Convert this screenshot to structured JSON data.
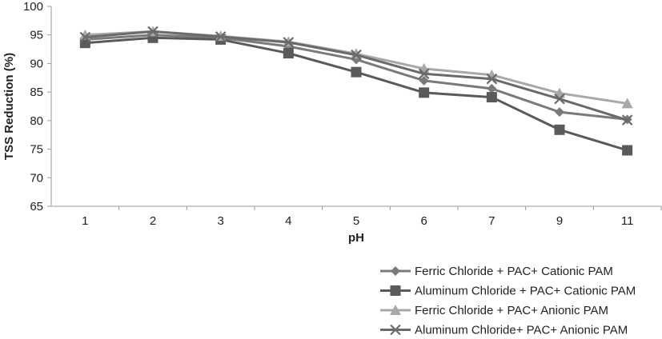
{
  "chart_data": {
    "type": "line",
    "title": "",
    "xlabel": "pH",
    "ylabel": "TSS Reduction (%)",
    "categories": [
      "1",
      "2",
      "3",
      "4",
      "5",
      "6",
      "7",
      "9",
      "11"
    ],
    "ylim": [
      65,
      100
    ],
    "yticks": [
      "65",
      "70",
      "75",
      "80",
      "85",
      "90",
      "95",
      "100"
    ],
    "grid": false,
    "legend_position": "bottom-right",
    "series": [
      {
        "name": "Ferric Chloride + PAC+ Cationic PAM",
        "marker": "diamond",
        "color": "#7a7a7a",
        "values": [
          94.2,
          95.0,
          94.5,
          93.0,
          90.7,
          87.0,
          85.6,
          81.5,
          80.2
        ]
      },
      {
        "name": "Aluminum Chloride + PAC+ Cationic PAM",
        "marker": "square",
        "color": "#5a5a5a",
        "values": [
          93.6,
          94.5,
          94.2,
          91.8,
          88.5,
          84.9,
          84.1,
          78.4,
          74.8
        ]
      },
      {
        "name": "Ferric Chloride + PAC+ Anionic PAM",
        "marker": "triangle",
        "color": "#a8a8a8",
        "values": [
          95.0,
          95.6,
          94.8,
          93.8,
          91.7,
          89.1,
          88.0,
          84.8,
          83.0
        ]
      },
      {
        "name": "Aluminum Chloride+ PAC+ Anionic PAM",
        "marker": "x",
        "color": "#6a6a6a",
        "values": [
          94.6,
          95.6,
          94.7,
          93.7,
          91.5,
          88.2,
          87.3,
          83.8,
          80.1
        ]
      }
    ]
  }
}
